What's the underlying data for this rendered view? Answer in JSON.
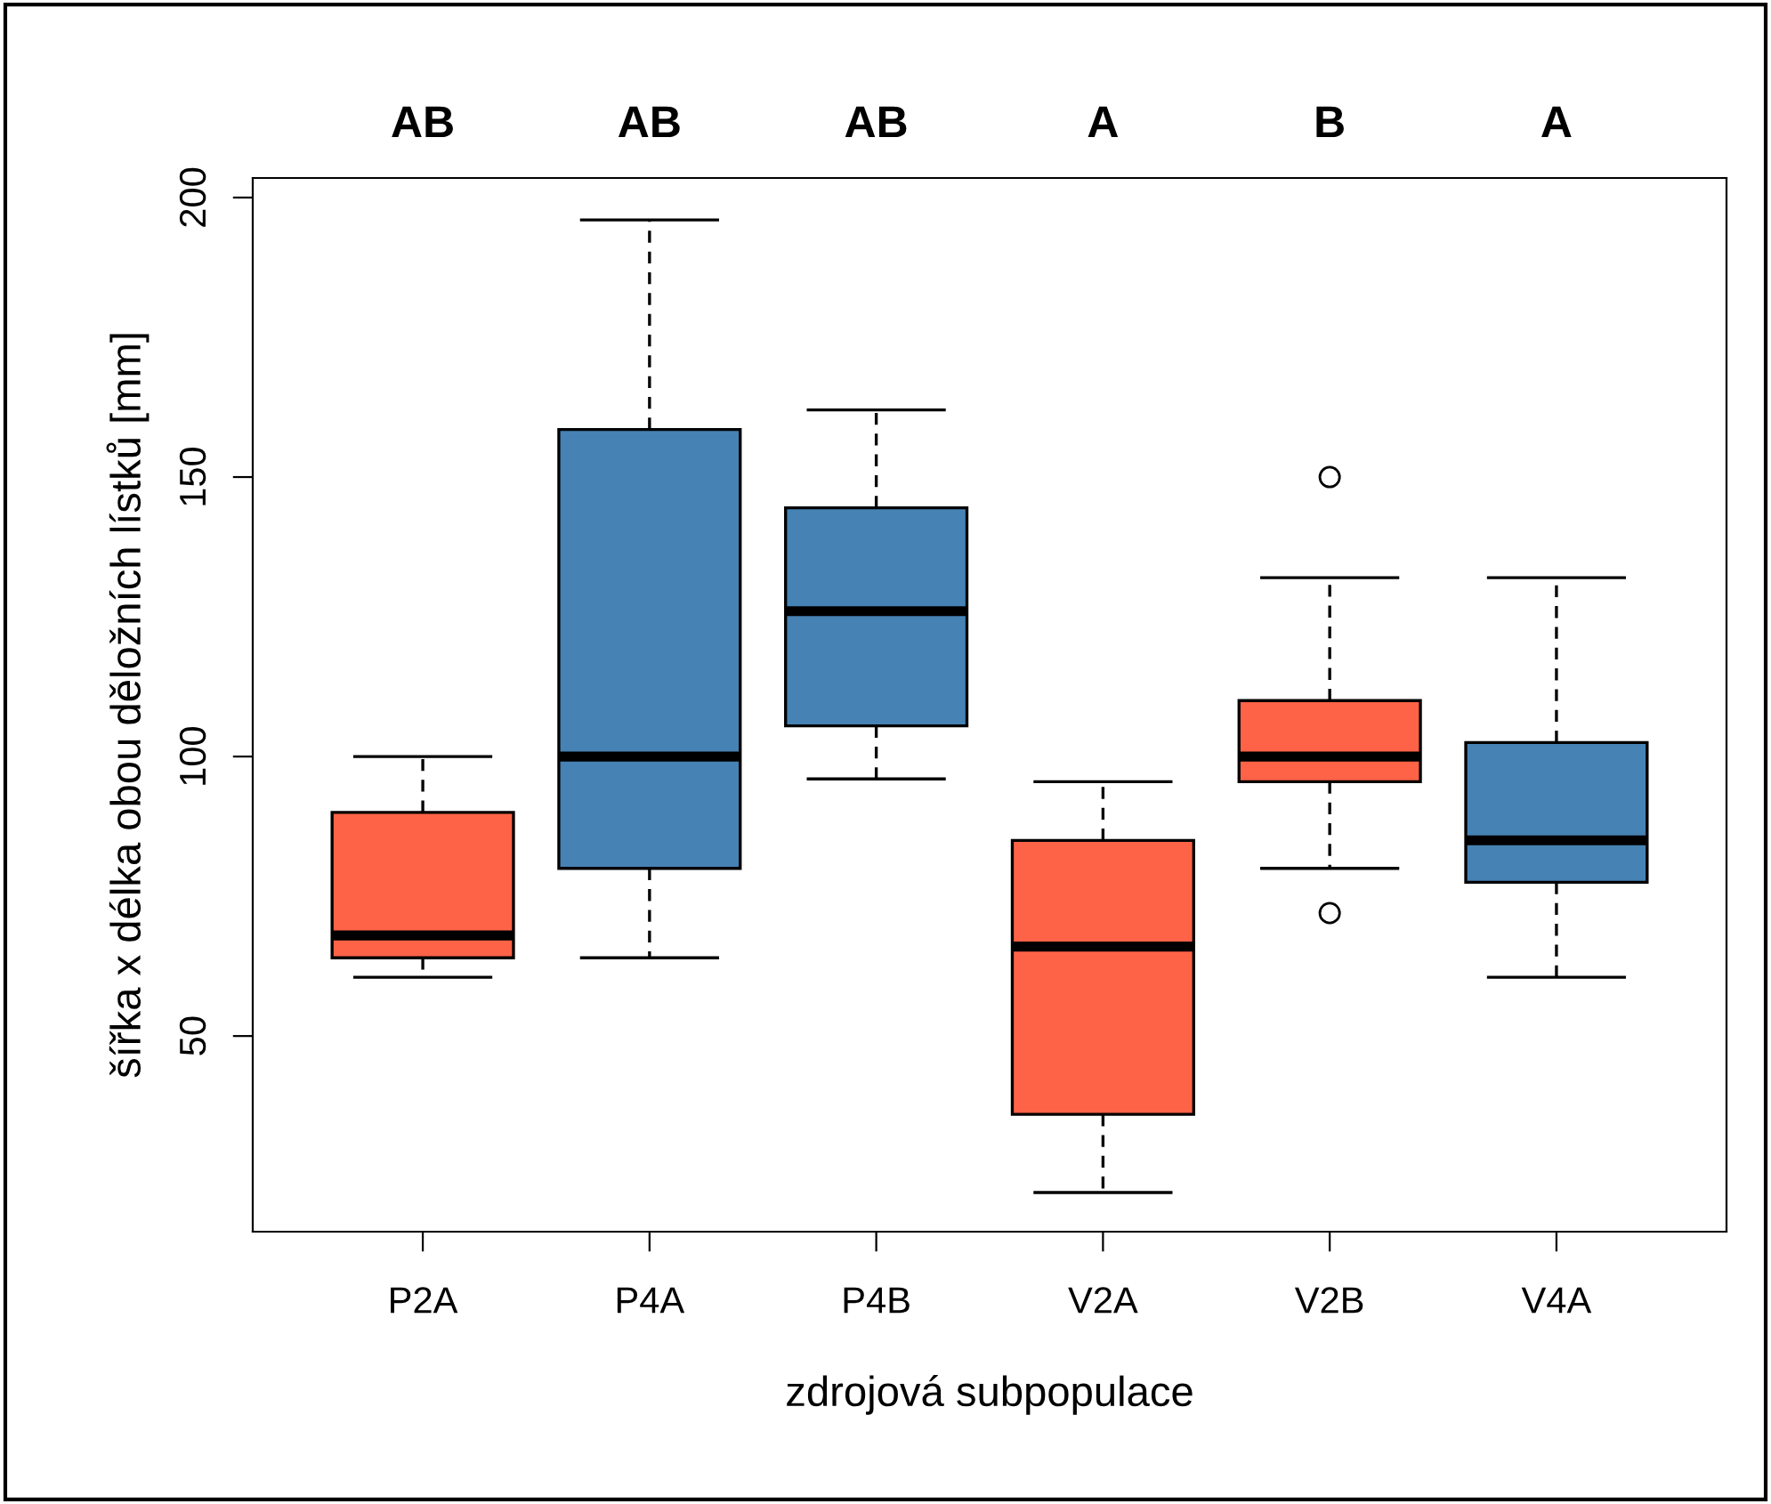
{
  "chart_data": {
    "type": "box",
    "xlabel": "zdrojová subpopulace",
    "ylabel": "šířka x délka obou děložních lístků [mm]",
    "categories": [
      "P2A",
      "P4A",
      "P4B",
      "V2A",
      "V2B",
      "V4A"
    ],
    "colors": [
      "#ff6347",
      "#4682b4",
      "#4682b4",
      "#ff6347",
      "#ff6347",
      "#4682b4"
    ],
    "boxes": [
      {
        "low": 60.5,
        "q1": 64,
        "median": 68,
        "q3": 90,
        "high": 100
      },
      {
        "low": 64,
        "q1": 80,
        "median": 100,
        "q3": 158.5,
        "high": 196
      },
      {
        "low": 96,
        "q1": 105.5,
        "median": 126,
        "q3": 144.5,
        "high": 162
      },
      {
        "low": 22,
        "q1": 36,
        "median": 66,
        "q3": 85,
        "high": 95.5
      },
      {
        "low": 80,
        "q1": 95.5,
        "median": 100,
        "q3": 110,
        "high": 132,
        "outliers": [
          150,
          72
        ]
      },
      {
        "low": 60.5,
        "q1": 77.5,
        "median": 85,
        "q3": 102.5,
        "high": 132
      }
    ],
    "annotations": [
      "AB",
      "AB",
      "AB",
      "A",
      "B",
      "A"
    ],
    "ylim": [
      15,
      203.5
    ],
    "yticks": [
      50,
      100,
      150,
      200
    ],
    "grid": false
  }
}
